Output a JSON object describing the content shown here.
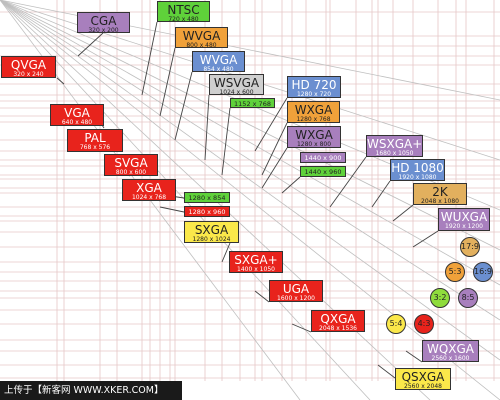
{
  "colors": {
    "red": "#e8231c",
    "purple": "#a87fbd",
    "orange": "#f0a13a",
    "blue": "#6b8fd0",
    "green": "#5fd13a",
    "gray": "#cfcfcf",
    "yellow": "#fbe84a",
    "tan": "#e2b05e",
    "lime": "#8fdc3c"
  },
  "resolutions": [
    {
      "id": "cga",
      "name": "CGA",
      "res": "320 x 200",
      "color": "purple",
      "text": "#222"
    },
    {
      "id": "ntsc",
      "name": "NTSC",
      "res": "720 x 480",
      "color": "green",
      "text": "#222"
    },
    {
      "id": "qvga",
      "name": "QVGA",
      "res": "320 x 240",
      "color": "red",
      "text": "#fff"
    },
    {
      "id": "wvga-800",
      "name": "WVGA",
      "res": "800 x 480",
      "color": "orange",
      "text": "#222"
    },
    {
      "id": "wvga-854",
      "name": "WVGA",
      "res": "854 x 480",
      "color": "blue",
      "text": "#fff"
    },
    {
      "id": "wsvga",
      "name": "WSVGA",
      "res": "1024 x 600",
      "color": "gray",
      "text": "#222"
    },
    {
      "id": "hd720",
      "name": "HD 720",
      "res": "1280 x 720",
      "color": "blue",
      "text": "#fff"
    },
    {
      "id": "r1152",
      "name": "",
      "res": "1152 x 768",
      "color": "green",
      "text": "#222",
      "small": true
    },
    {
      "id": "vga",
      "name": "VGA",
      "res": "640 x 480",
      "color": "red",
      "text": "#fff"
    },
    {
      "id": "wxga-768",
      "name": "WXGA",
      "res": "1280 x 768",
      "color": "orange",
      "text": "#222"
    },
    {
      "id": "pal",
      "name": "PAL",
      "res": "768 x 576",
      "color": "red",
      "text": "#fff"
    },
    {
      "id": "wxga-800",
      "name": "WXGA",
      "res": "1280 x 800",
      "color": "purple",
      "text": "#222"
    },
    {
      "id": "wsxgap",
      "name": "WSXGA+",
      "res": "1680 x 1050",
      "color": "purple",
      "text": "#fff"
    },
    {
      "id": "svga",
      "name": "SVGA",
      "res": "800 x 600",
      "color": "red",
      "text": "#fff"
    },
    {
      "id": "r1440x900",
      "name": "",
      "res": "1440 x 900",
      "color": "purple",
      "text": "#fff",
      "small": true
    },
    {
      "id": "hd1080",
      "name": "HD 1080",
      "res": "1920 x 1080",
      "color": "blue",
      "text": "#fff"
    },
    {
      "id": "r1440x960",
      "name": "",
      "res": "1440 x 960",
      "color": "green",
      "text": "#222",
      "small": true
    },
    {
      "id": "xga",
      "name": "XGA",
      "res": "1024 x 768",
      "color": "red",
      "text": "#fff"
    },
    {
      "id": "r2k",
      "name": "2K",
      "res": "2048 x 1080",
      "color": "tan",
      "text": "#222"
    },
    {
      "id": "r1280x854",
      "name": "",
      "res": "1280 x 854",
      "color": "green",
      "text": "#222",
      "small": true
    },
    {
      "id": "r1280x960",
      "name": "",
      "res": "1280 x 960",
      "color": "red",
      "text": "#fff",
      "small": true
    },
    {
      "id": "wuxga",
      "name": "WUXGA",
      "res": "1920 x 1200",
      "color": "purple",
      "text": "#fff"
    },
    {
      "id": "sxga",
      "name": "SXGA",
      "res": "1280 x 1024",
      "color": "yellow",
      "text": "#222"
    },
    {
      "id": "sxgap",
      "name": "SXGA+",
      "res": "1400 x 1050",
      "color": "red",
      "text": "#fff"
    },
    {
      "id": "uga",
      "name": "UGA",
      "res": "1600 x 1200",
      "color": "red",
      "text": "#fff"
    },
    {
      "id": "qxga",
      "name": "QXGA",
      "res": "2048 x 1536",
      "color": "red",
      "text": "#fff"
    },
    {
      "id": "wqxga",
      "name": "WQXGA",
      "res": "2560 x 1600",
      "color": "purple",
      "text": "#fff"
    },
    {
      "id": "qsxga",
      "name": "QSXGA",
      "res": "2560 x 2048",
      "color": "yellow",
      "text": "#222"
    }
  ],
  "aspect_ratios": [
    {
      "id": "r17-9",
      "label": "17:9",
      "color": "tan",
      "text": "#222"
    },
    {
      "id": "r5-3",
      "label": "5:3",
      "color": "orange",
      "text": "#222"
    },
    {
      "id": "r16-9",
      "label": "16:9",
      "color": "blue",
      "text": "#222"
    },
    {
      "id": "r3-2",
      "label": "3:2",
      "color": "lime",
      "text": "#222"
    },
    {
      "id": "r8-5",
      "label": "8:5",
      "color": "purple",
      "text": "#222"
    },
    {
      "id": "r5-4",
      "label": "5:4",
      "color": "yellow",
      "text": "#222"
    },
    {
      "id": "r4-3",
      "label": "4:3",
      "color": "red",
      "text": "#222"
    }
  ],
  "footer": {
    "text": "上传于【新客网 WWW.XKER.COM】"
  }
}
